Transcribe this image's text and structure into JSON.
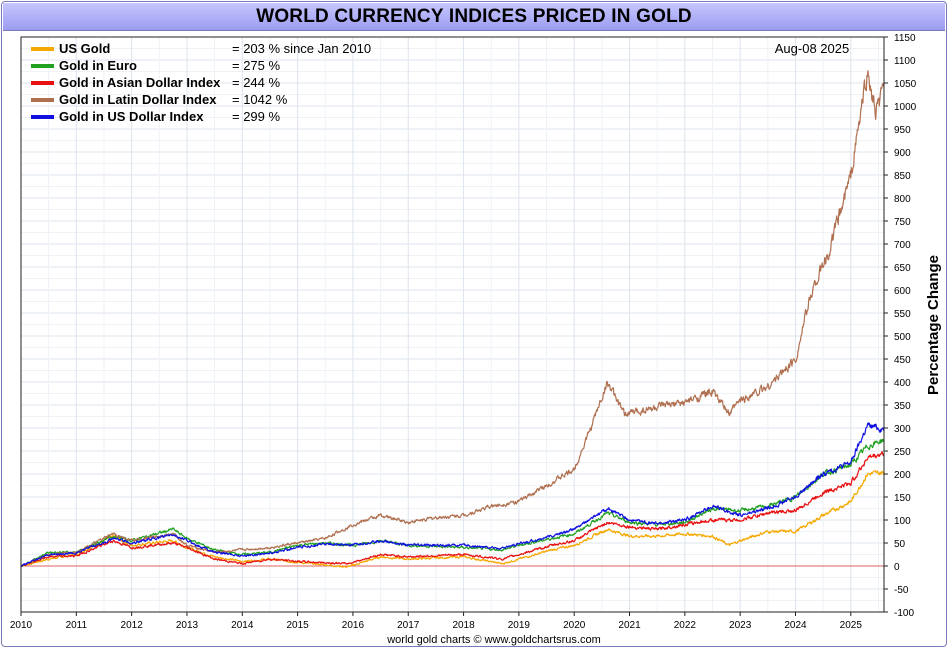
{
  "chart_data": {
    "type": "line",
    "title": "WORLD CURRENCY INDICES PRICED IN GOLD",
    "date_label": "Aug-08  2025",
    "ylabel": "Percentage Change",
    "footer": "world gold charts © www.goldchartsrus.com",
    "ylim": [
      -100,
      1150
    ],
    "xlim": [
      2010,
      2025.6
    ],
    "x_ticks": [
      "2010",
      "2011",
      "2012",
      "2013",
      "2014",
      "2015",
      "2016",
      "2017",
      "2018",
      "2019",
      "2020",
      "2021",
      "2022",
      "2023",
      "2024",
      "2025"
    ],
    "y_ticks": [
      "-100",
      "-50",
      "0",
      "50",
      "100",
      "150",
      "200",
      "250",
      "300",
      "350",
      "400",
      "450",
      "500",
      "550",
      "600",
      "650",
      "700",
      "750",
      "800",
      "850",
      "900",
      "950",
      "1000",
      "1050",
      "1100",
      "1150"
    ],
    "grid": true,
    "legend_position": "top-left",
    "zero_line_color": "#e06060",
    "series": [
      {
        "name": "US Gold",
        "label": "= 203 % since Jan 2010",
        "color": "#f5a800",
        "x": [
          2010,
          2010.5,
          2011,
          2011.67,
          2012,
          2012.75,
          2013,
          2013.5,
          2014,
          2014.5,
          2015,
          2015.9,
          2016.5,
          2017,
          2018,
          2018.7,
          2019,
          2019.6,
          2020,
          2020.6,
          2021,
          2021.5,
          2022,
          2022.5,
          2022.8,
          2023,
          2023.5,
          2024,
          2024.5,
          2025,
          2025.3,
          2025.6
        ],
        "values": [
          0,
          15,
          25,
          65,
          45,
          55,
          40,
          20,
          10,
          15,
          8,
          -2,
          20,
          15,
          20,
          5,
          15,
          35,
          45,
          80,
          65,
          65,
          70,
          65,
          45,
          55,
          75,
          75,
          110,
          140,
          200,
          203
        ]
      },
      {
        "name": "Gold in Euro",
        "label": "= 275 %",
        "color": "#22a022",
        "x": [
          2010,
          2010.5,
          2011,
          2011.67,
          2012,
          2012.75,
          2013,
          2013.5,
          2014,
          2014.5,
          2015,
          2015.5,
          2016,
          2016.5,
          2017,
          2018,
          2018.7,
          2019,
          2019.6,
          2020,
          2020.6,
          2021,
          2021.5,
          2022,
          2022.5,
          2023,
          2023.5,
          2024,
          2024.5,
          2025,
          2025.3,
          2025.6
        ],
        "values": [
          0,
          30,
          30,
          65,
          55,
          80,
          60,
          35,
          25,
          30,
          45,
          50,
          45,
          55,
          45,
          40,
          35,
          45,
          60,
          70,
          115,
          95,
          90,
          95,
          125,
          120,
          130,
          150,
          200,
          220,
          260,
          275
        ]
      },
      {
        "name": "Gold in Asian Dollar Index",
        "label": "= 244 %",
        "color": "#e81010",
        "x": [
          2010,
          2010.5,
          2011,
          2011.67,
          2012,
          2012.75,
          2013,
          2013.5,
          2014,
          2014.5,
          2015,
          2015.9,
          2016.5,
          2017,
          2018,
          2018.7,
          2019,
          2019.6,
          2020,
          2020.6,
          2021,
          2021.5,
          2022,
          2022.5,
          2023,
          2023.5,
          2024,
          2024.5,
          2025,
          2025.3,
          2025.6
        ],
        "values": [
          0,
          20,
          22,
          55,
          40,
          50,
          40,
          15,
          5,
          15,
          10,
          5,
          25,
          20,
          25,
          15,
          25,
          45,
          55,
          95,
          85,
          80,
          90,
          100,
          100,
          115,
          120,
          160,
          180,
          235,
          244
        ]
      },
      {
        "name": "Gold in Latin Dollar Index",
        "label": "= 1042 %",
        "color": "#b07050",
        "x": [
          2010,
          2010.5,
          2011,
          2011.67,
          2012,
          2012.75,
          2013,
          2013.5,
          2014,
          2014.5,
          2015,
          2015.5,
          2016,
          2016.5,
          2017,
          2017.5,
          2018,
          2018.5,
          2019,
          2019.5,
          2020,
          2020.3,
          2020.6,
          2020.9,
          2021.5,
          2022,
          2022.5,
          2022.8,
          2023,
          2023.5,
          2024,
          2024.3,
          2024.6,
          2025,
          2025.3,
          2025.45,
          2025.6
        ],
        "values": [
          0,
          25,
          30,
          70,
          55,
          70,
          45,
          30,
          35,
          40,
          50,
          60,
          90,
          110,
          95,
          105,
          110,
          130,
          140,
          175,
          210,
          300,
          400,
          330,
          345,
          355,
          380,
          330,
          360,
          390,
          450,
          600,
          680,
          850,
          1075,
          980,
          1042
        ]
      },
      {
        "name": "Gold in US Dollar Index",
        "label": "= 299 %",
        "color": "#1010e0",
        "x": [
          2010,
          2010.5,
          2011,
          2011.67,
          2012,
          2012.75,
          2013,
          2013.5,
          2014,
          2014.5,
          2015,
          2015.5,
          2016,
          2016.5,
          2017,
          2018,
          2018.7,
          2019,
          2019.6,
          2020,
          2020.6,
          2021,
          2021.5,
          2022,
          2022.5,
          2023,
          2023.5,
          2024,
          2024.5,
          2025,
          2025.3,
          2025.6
        ],
        "values": [
          0,
          25,
          28,
          60,
          50,
          68,
          55,
          30,
          22,
          28,
          40,
          48,
          45,
          55,
          45,
          45,
          38,
          48,
          65,
          80,
          125,
          100,
          92,
          100,
          130,
          110,
          125,
          150,
          200,
          225,
          305,
          299
        ]
      }
    ]
  }
}
